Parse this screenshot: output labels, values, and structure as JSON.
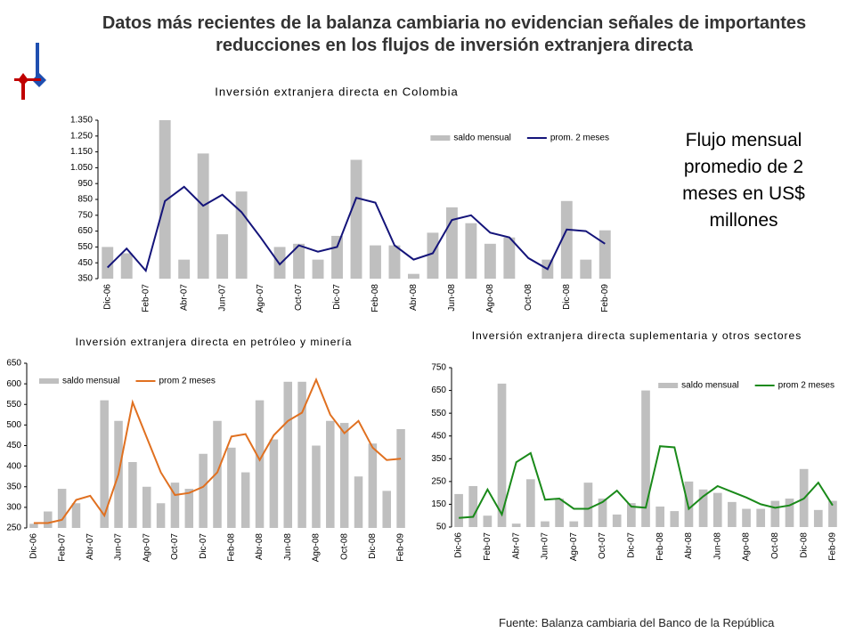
{
  "title": "Datos más recientes de la balanza cambiaria no evidencian señales de importantes reducciones en los flujos de inversión extranjera directa",
  "side_note": "Flujo mensual promedio de 2 meses en US$ millones",
  "source": "Fuente: Balanza cambiaria del Banco de la República",
  "chart_data": [
    {
      "type": "combo",
      "title": "Inversión extranjera directa en Colombia",
      "categories": [
        "Dic-06",
        null,
        "Feb-07",
        null,
        "Abr-07",
        null,
        "Jun-07",
        null,
        "Ago-07",
        null,
        "Oct-07",
        null,
        "Dic-07",
        null,
        "Feb-08",
        null,
        "Abr-08",
        null,
        "Jun-08",
        null,
        "Ago-08",
        null,
        "Oct-08",
        null,
        "Dic-08",
        null,
        "Feb-09"
      ],
      "series": [
        {
          "name": "saldo mensual",
          "kind": "bar",
          "color": "#bfbfbf",
          "values": [
            550,
            510,
            null,
            1350,
            470,
            1140,
            630,
            900,
            null,
            550,
            570,
            470,
            620,
            1100,
            560,
            560,
            380,
            640,
            800,
            700,
            570,
            610,
            null,
            470,
            840,
            470,
            655
          ]
        },
        {
          "name": "prom. 2 meses",
          "kind": "line",
          "color": "#14147a",
          "values": [
            420,
            540,
            400,
            840,
            930,
            810,
            880,
            770,
            610,
            440,
            560,
            520,
            550,
            860,
            830,
            560,
            470,
            510,
            720,
            750,
            640,
            610,
            480,
            410,
            660,
            650,
            570
          ]
        }
      ],
      "ylim": [
        350,
        1350
      ],
      "yticks": [
        350,
        450,
        550,
        650,
        750,
        850,
        950,
        {
          "value": 1050,
          "label": "1.050"
        },
        {
          "value": 1150,
          "label": "1.150"
        },
        {
          "value": 1250,
          "label": "1.250"
        },
        {
          "value": 1350,
          "label": "1.350"
        }
      ],
      "legend": "upper right"
    },
    {
      "type": "combo",
      "title": "Inversión extranjera directa en petróleo y minería",
      "categories": [
        "Dic-06",
        null,
        "Feb-07",
        null,
        "Abr-07",
        null,
        "Jun-07",
        null,
        "Ago-07",
        null,
        "Oct-07",
        null,
        "Dic-07",
        null,
        "Feb-08",
        null,
        "Abr-08",
        null,
        "Jun-08",
        null,
        "Ago-08",
        null,
        "Oct-08",
        null,
        "Dic-08",
        null,
        "Feb-09"
      ],
      "series": [
        {
          "name": "saldo mensual",
          "kind": "bar",
          "color": "#bfbfbf",
          "values": [
            260,
            290,
            345,
            310,
            null,
            560,
            510,
            410,
            350,
            310,
            360,
            345,
            430,
            510,
            445,
            385,
            560,
            465,
            605,
            605,
            450,
            510,
            505,
            375,
            455,
            340,
            490
          ]
        },
        {
          "name": "prom 2 meses",
          "kind": "line",
          "color": "#e07020",
          "values": [
            262,
            262,
            270,
            318,
            328,
            280,
            380,
            555,
            470,
            385,
            330,
            335,
            350,
            385,
            472,
            478,
            415,
            475,
            510,
            530,
            610,
            525,
            480,
            510,
            445,
            415,
            418
          ]
        }
      ],
      "ylim": [
        250,
        650
      ],
      "yticks": [
        250,
        300,
        350,
        400,
        450,
        500,
        550,
        600,
        650
      ],
      "legend": "upper left"
    },
    {
      "type": "combo",
      "title": "Inversión extranjera directa suplementaria y otros sectores",
      "categories": [
        "Dic-06",
        null,
        "Feb-07",
        null,
        "Abr-07",
        null,
        "Jun-07",
        null,
        "Ago-07",
        null,
        "Oct-07",
        null,
        "Dic-07",
        null,
        "Feb-08",
        null,
        "Abr-08",
        null,
        "Jun-08",
        null,
        "Ago-08",
        null,
        "Oct-08",
        null,
        "Dic-08",
        null,
        "Feb-09"
      ],
      "series": [
        {
          "name": "saldo mensual",
          "kind": "bar",
          "color": "#bfbfbf",
          "values": [
            195,
            230,
            100,
            680,
            65,
            260,
            75,
            175,
            75,
            245,
            175,
            105,
            155,
            650,
            140,
            120,
            250,
            215,
            200,
            160,
            130,
            130,
            165,
            175,
            305,
            125,
            165
          ]
        },
        {
          "name": "prom 2 meses",
          "kind": "line",
          "color": "#1a8a1a",
          "values": [
            90,
            95,
            215,
            105,
            335,
            375,
            170,
            175,
            130,
            130,
            160,
            210,
            140,
            135,
            405,
            400,
            130,
            185,
            230,
            205,
            180,
            150,
            135,
            145,
            175,
            245,
            145
          ]
        }
      ],
      "ylim": [
        50,
        750
      ],
      "yticks": [
        50,
        150,
        250,
        350,
        450,
        550,
        650,
        750
      ],
      "legend": "upper right"
    }
  ]
}
